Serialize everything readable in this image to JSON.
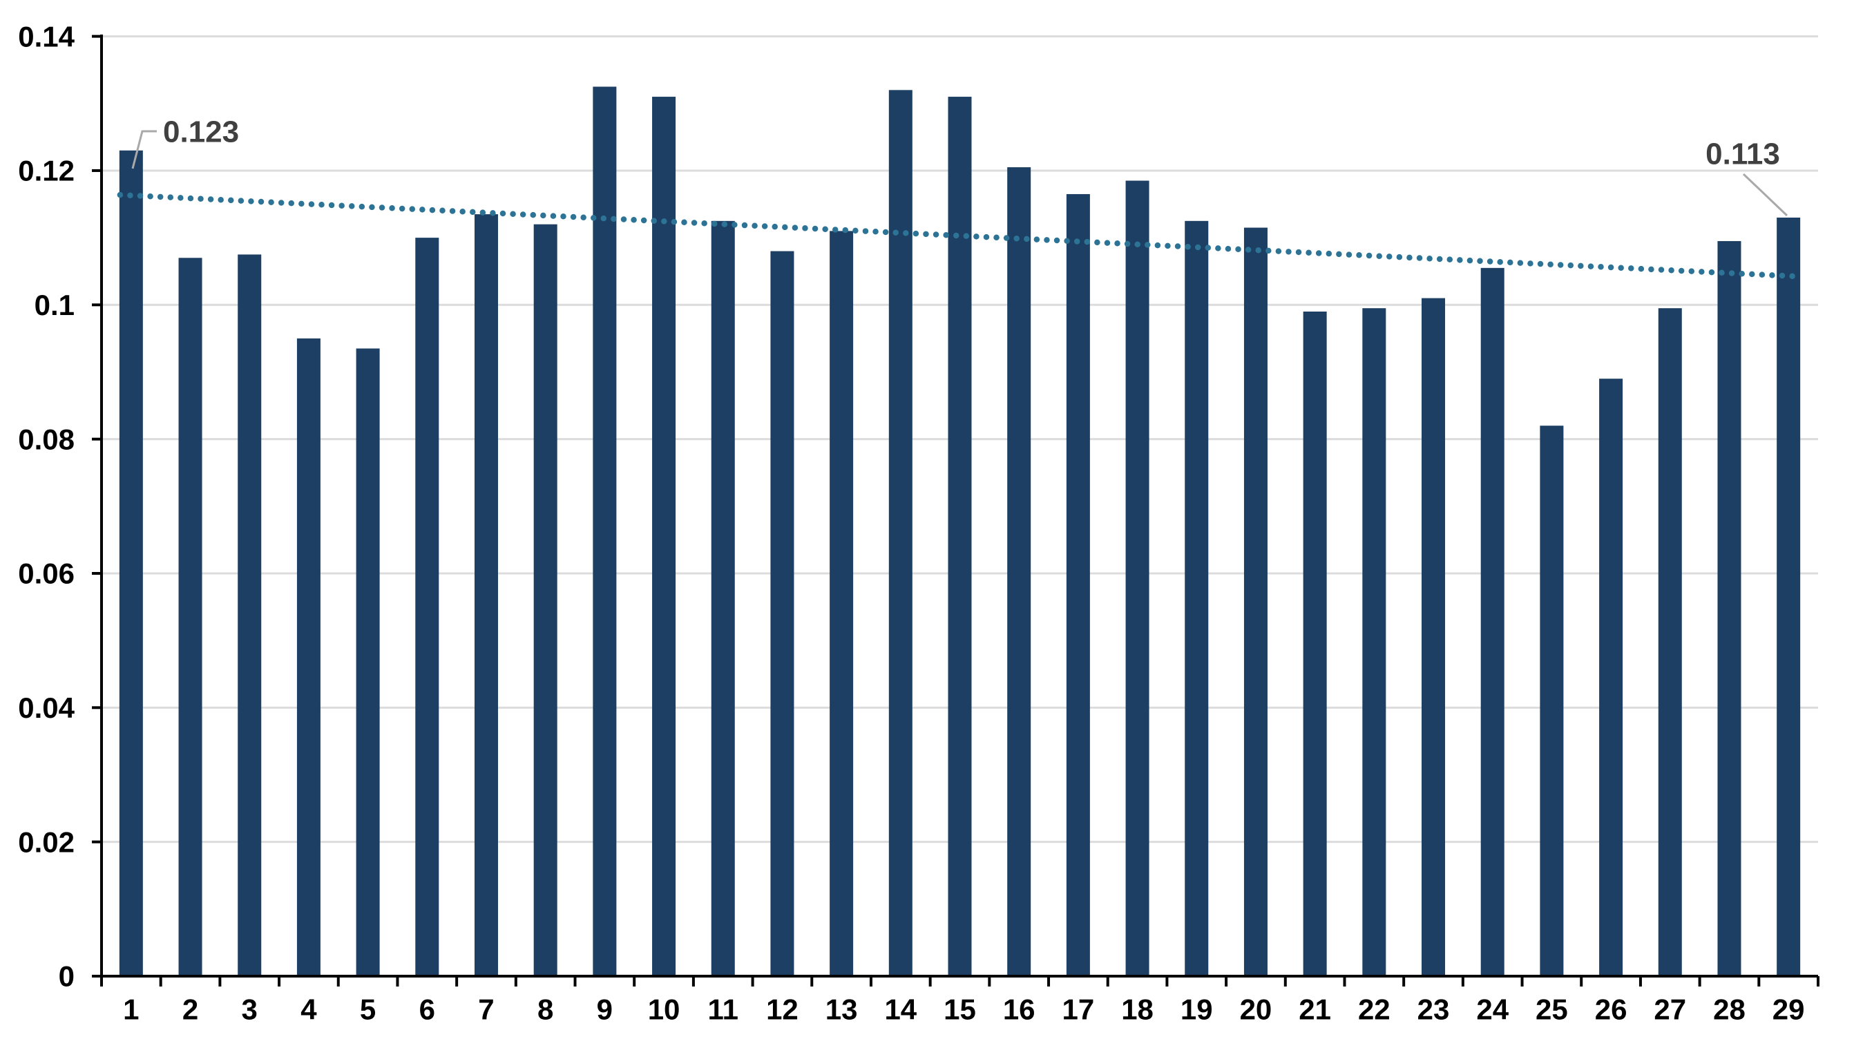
{
  "chart_data": {
    "type": "bar",
    "title": "",
    "categories": [
      "1",
      "2",
      "3",
      "4",
      "5",
      "6",
      "7",
      "8",
      "9",
      "10",
      "11",
      "12",
      "13",
      "14",
      "15",
      "16",
      "17",
      "18",
      "19",
      "20",
      "21",
      "22",
      "23",
      "24",
      "25",
      "26",
      "27",
      "28",
      "29"
    ],
    "values": [
      0.123,
      0.107,
      0.1075,
      0.095,
      0.0935,
      0.11,
      0.1135,
      0.112,
      0.1325,
      0.131,
      0.1125,
      0.108,
      0.111,
      0.132,
      0.131,
      0.1205,
      0.1165,
      0.1185,
      0.1125,
      0.1115,
      0.099,
      0.0995,
      0.101,
      0.1055,
      0.082,
      0.089,
      0.0995,
      0.1095,
      0.113
    ],
    "ylim": [
      0,
      0.14
    ],
    "y_tick_values": [
      0,
      0.02,
      0.04,
      0.06,
      0.08,
      0.1,
      0.12,
      0.14
    ],
    "y_tick_labels": [
      "0",
      "0.02",
      "0.04",
      "0.06",
      "0.08",
      "0.1",
      "0.12",
      "0.14"
    ],
    "grid": true,
    "legend": false,
    "trendline": {
      "style": "dotted",
      "start_value": 0.1163,
      "end_value": 0.1043
    },
    "annotations": [
      {
        "category": "1",
        "text": "0.123"
      },
      {
        "category": "29",
        "text": "0.113"
      }
    ]
  },
  "colors": {
    "background": "#ffffff",
    "bar": "#1c3f63",
    "trendline": "#2d7396",
    "gridline": "#dcdcdc",
    "axis": "#000000",
    "tick_label": "#000000",
    "data_label": "#404040",
    "leader_line": "#a9a9a9"
  }
}
